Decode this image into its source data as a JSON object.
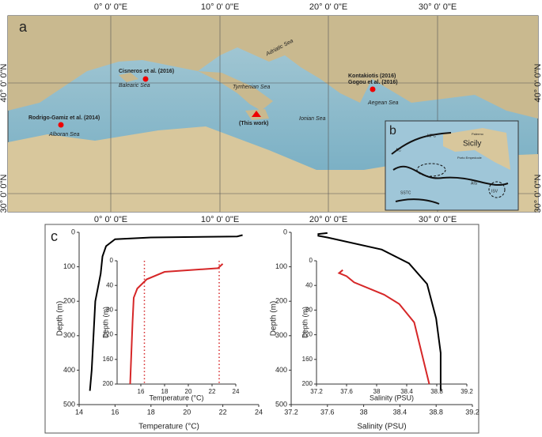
{
  "map": {
    "panel_label": "a",
    "lon_labels": [
      "0° 0' 0\"E",
      "10° 0' 0\"E",
      "20° 0' 0\"E",
      "30° 0' 0\"E"
    ],
    "lat_labels": [
      "40° 0' 0\"N",
      "30° 0' 0\"N"
    ],
    "sites": [
      "Cisneros et al. (2016)",
      "Kontakiotis (2016)",
      "Gogou et al. (2016)",
      "Rodrigo-Gamiz et al. (2014)",
      "(This work)"
    ],
    "seas": [
      "Adriatic Sea",
      "Balearic Sea",
      "Tyrrhenian Sea",
      "Ionian Sea",
      "Aegean Sea",
      "Alboran Sea"
    ],
    "inset": {
      "panel_label": "b",
      "labels": [
        "Sicily",
        "Palermo",
        "Porto Empedocle",
        "AIS",
        "AC",
        "SSTC",
        "MPC",
        "ISV"
      ]
    }
  },
  "panel_label": "c",
  "chart_data": [
    {
      "type": "line",
      "color": "#000000",
      "x": [
        23.1,
        22.8,
        18,
        16,
        15.5,
        15.3,
        15.2,
        14.9,
        14.8,
        14.7,
        14.6
      ],
      "values": [
        8,
        12,
        15,
        20,
        40,
        70,
        120,
        200,
        300,
        400,
        460
      ],
      "xlim": [
        14,
        24
      ],
      "xticks": [
        14,
        16,
        18,
        20,
        22,
        24
      ],
      "ylim": [
        500,
        0
      ],
      "yticks": [
        0,
        100,
        200,
        300,
        400,
        500
      ],
      "xlabel": "Temperature (°C)",
      "ylabel": "Depth (m)"
    },
    {
      "type": "line",
      "color": "#d62728",
      "x": [
        22.9,
        22.5,
        18,
        16.5,
        15.7,
        15.4,
        15.3,
        15.2,
        15.1
      ],
      "values": [
        5,
        12,
        18,
        30,
        45,
        60,
        100,
        150,
        200
      ],
      "xlim": [
        14,
        24
      ],
      "xticks": [
        16,
        18,
        20,
        22,
        24
      ],
      "ylim": [
        200,
        0
      ],
      "yticks": [
        0,
        40,
        80,
        120,
        160,
        200
      ],
      "xlabel": "Temperature (°C)",
      "ylabel": "Depth (m)",
      "vlines": [
        16.3,
        22.6
      ]
    },
    {
      "type": "line",
      "color": "#000000",
      "x": [
        37.6,
        37.5,
        37.5,
        37.6,
        38.2,
        38.5,
        38.7,
        38.8,
        38.85,
        38.85
      ],
      "values": [
        2,
        5,
        10,
        15,
        50,
        90,
        150,
        250,
        350,
        460
      ],
      "xlim": [
        37.2,
        39.2
      ],
      "xticks": [
        37.2,
        37.6,
        38,
        38.4,
        38.8,
        39.2
      ],
      "ylim": [
        500,
        0
      ],
      "yticks": [
        0,
        100,
        200,
        300,
        400,
        500
      ],
      "xlabel": "Salinity (PSU)",
      "ylabel": "Depth (m)"
    },
    {
      "type": "line",
      "color": "#d62728",
      "x": [
        37.55,
        37.5,
        37.6,
        37.7,
        38.1,
        38.3,
        38.5,
        38.6,
        38.7
      ],
      "values": [
        15,
        20,
        25,
        35,
        55,
        70,
        100,
        150,
        200
      ],
      "xlim": [
        37.2,
        39.2
      ],
      "xticks": [
        37.2,
        37.6,
        38,
        38.4,
        38.8,
        39.2
      ],
      "ylim": [
        200,
        0
      ],
      "yticks": [
        0,
        40,
        80,
        120,
        160,
        200
      ],
      "xlabel": "Salinity (PSU)",
      "ylabel": "Depth (m)"
    }
  ]
}
